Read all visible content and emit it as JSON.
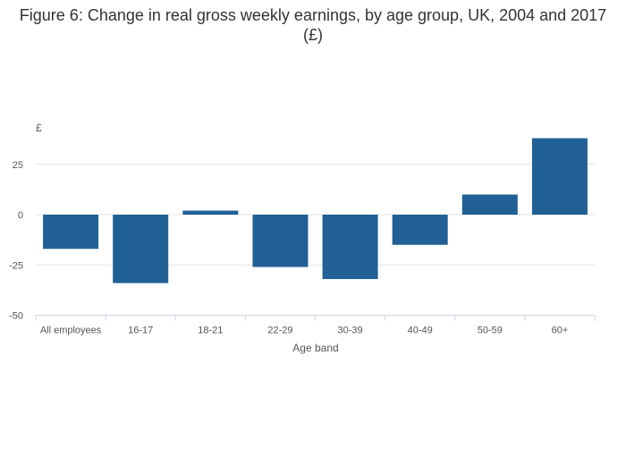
{
  "chart_data": {
    "type": "bar",
    "title": "Figure 6: Change in real gross weekly earnings, by age group, UK, 2004 and 2017 (£)",
    "xlabel": "Age band",
    "ylabel": "£",
    "ylim": [
      -50,
      50
    ],
    "yticks": [
      "25",
      "0",
      "-25",
      "-50"
    ],
    "categories": [
      "All employees",
      "16-17",
      "18-21",
      "22-29",
      "30-39",
      "40-49",
      "50-59",
      "60+"
    ],
    "values": [
      -17,
      -34,
      2,
      -26,
      -32,
      -15,
      10,
      38
    ],
    "bar_color": "#206095",
    "grid": true,
    "legend": "none"
  }
}
